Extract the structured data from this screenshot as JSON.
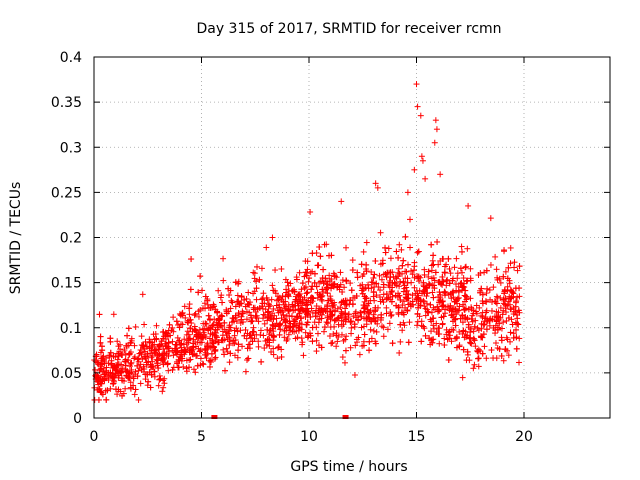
{
  "chart_data": {
    "type": "scatter",
    "title": "Day 315 of 2017, SRMTID for receiver rcmn",
    "xlabel": "GPS time / hours",
    "ylabel": "SRMTID / TECUs",
    "xlim": [
      0,
      24
    ],
    "ylim": [
      0,
      0.4
    ],
    "xticks": [
      0,
      5,
      10,
      15,
      20
    ],
    "xtick_labels": [
      "0",
      "5",
      "10",
      "15",
      "20"
    ],
    "yticks": [
      0,
      0.05,
      0.1,
      0.15,
      0.2,
      0.25,
      0.3,
      0.35,
      0.4
    ],
    "ytick_labels": [
      "0",
      "0.05",
      "0.1",
      "0.15",
      "0.2",
      "0.25",
      "0.3",
      "0.35",
      "0.4"
    ],
    "grid": true,
    "marker": "plus",
    "color": "#ff0000",
    "trend_profile": {
      "description": "approximate local mean SRMTID by hour (scatter density centre)",
      "x": [
        0,
        1,
        2,
        3,
        4,
        5,
        6,
        7,
        8,
        9,
        10,
        11,
        12,
        13,
        14,
        15,
        16,
        17,
        18,
        19,
        19.8
      ],
      "y": [
        0.05,
        0.055,
        0.06,
        0.07,
        0.085,
        0.09,
        0.1,
        0.11,
        0.11,
        0.115,
        0.125,
        0.13,
        0.12,
        0.13,
        0.14,
        0.14,
        0.13,
        0.12,
        0.11,
        0.12,
        0.12
      ]
    },
    "spread": 0.025,
    "point_count": 2600,
    "x_range_data": [
      0,
      19.8
    ],
    "highlighted_points": [
      {
        "x": 15.0,
        "y": 0.37
      },
      {
        "x": 15.05,
        "y": 0.345
      },
      {
        "x": 15.2,
        "y": 0.335
      },
      {
        "x": 15.25,
        "y": 0.29
      },
      {
        "x": 15.3,
        "y": 0.285
      },
      {
        "x": 15.9,
        "y": 0.33
      },
      {
        "x": 15.95,
        "y": 0.32
      },
      {
        "x": 15.85,
        "y": 0.305
      },
      {
        "x": 14.9,
        "y": 0.275
      },
      {
        "x": 13.1,
        "y": 0.26
      },
      {
        "x": 13.2,
        "y": 0.255
      },
      {
        "x": 11.5,
        "y": 0.24
      },
      {
        "x": 16.1,
        "y": 0.27
      },
      {
        "x": 17.4,
        "y": 0.235
      },
      {
        "x": 8.3,
        "y": 0.2
      },
      {
        "x": 14.6,
        "y": 0.25
      },
      {
        "x": 15.4,
        "y": 0.265
      }
    ],
    "zero_markers": [
      {
        "x": 5.6,
        "y": 0
      },
      {
        "x": 11.7,
        "y": 0
      }
    ]
  }
}
